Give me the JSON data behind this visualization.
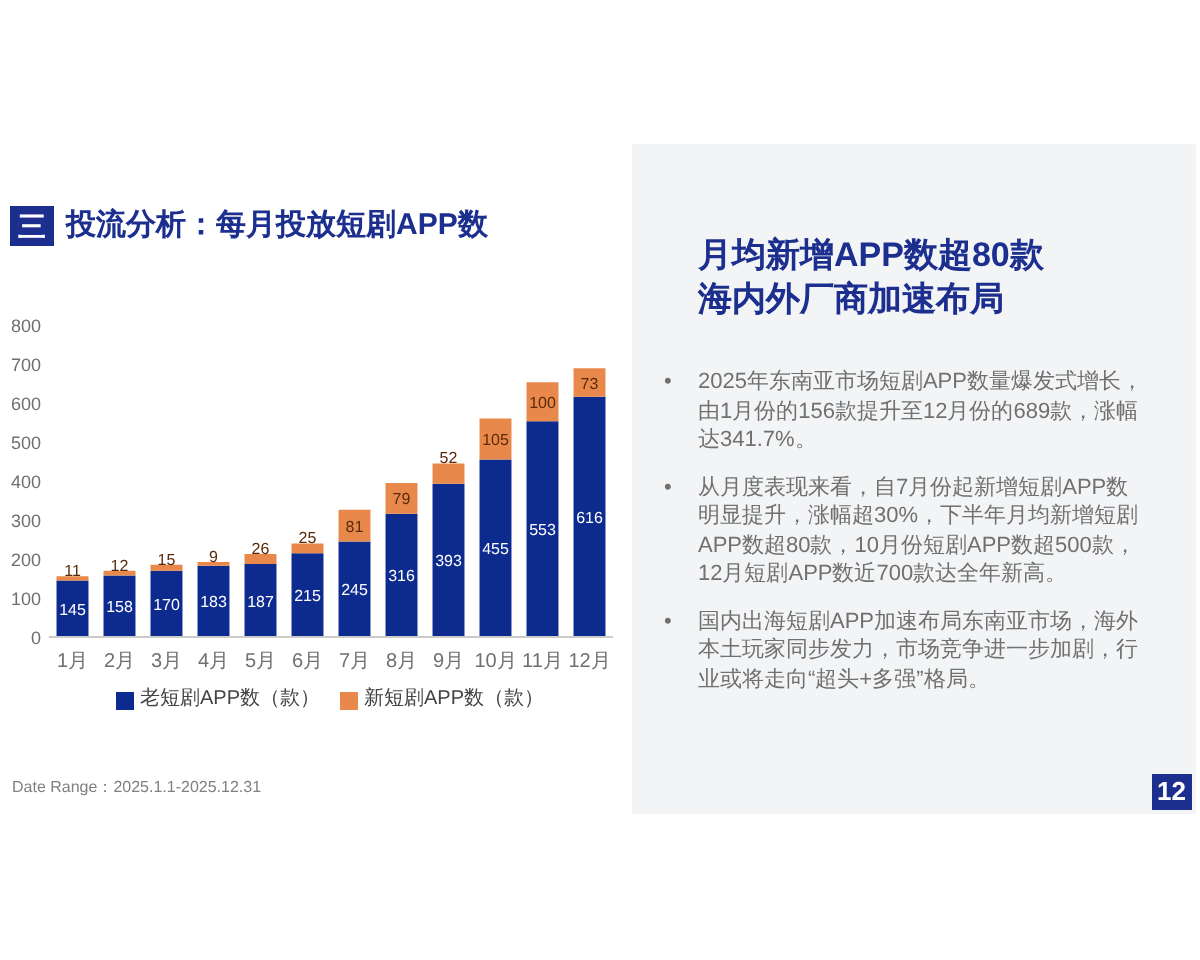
{
  "chart_data": {
    "type": "bar",
    "title": "投流分析：每月投放短剧APP数",
    "categories": [
      "1月",
      "2月",
      "3月",
      "4月",
      "5月",
      "6月",
      "7月",
      "8月",
      "9月",
      "10月",
      "11月",
      "12月"
    ],
    "series": [
      {
        "name": "老短剧APP数（款）",
        "color": "#0d2b8f",
        "values": [
          145,
          158,
          170,
          183,
          187,
          215,
          245,
          316,
          393,
          455,
          553,
          616
        ]
      },
      {
        "name": "新短剧APP数（款）",
        "color": "#e8894b",
        "values": [
          11,
          12,
          15,
          9,
          26,
          25,
          81,
          79,
          52,
          105,
          100,
          73
        ]
      }
    ],
    "stacked": true,
    "ylim": [
      0,
      800
    ],
    "yticks": [
      0,
      100,
      200,
      300,
      400,
      500,
      600,
      700,
      800
    ],
    "legend": "bottom",
    "data_labels": true,
    "annotations": [
      "三",
      "Date Range：2025.1.1-2025.12.31",
      "月均新增APP数超80款海内外厂商加速布局",
      "• 2025年东南亚市场短剧APP数量爆发式增长，由1月份的156款提升至12月份的689款，涨幅达341.7%。",
      "• 从月度表现来看，自7月份起新增短剧APP数明显提升，涨幅超30%，下半年月均新增短剧APP数超80款，10月份短剧APP数超500款，12月短剧APP数近700款达全年新高。",
      "• 国内出海短剧APP加速布局东南亚市场，海外本土玩家同步发力，市场竞争进一步加剧，行业或将走向“超头+多强”格局。",
      "12"
    ]
  }
}
